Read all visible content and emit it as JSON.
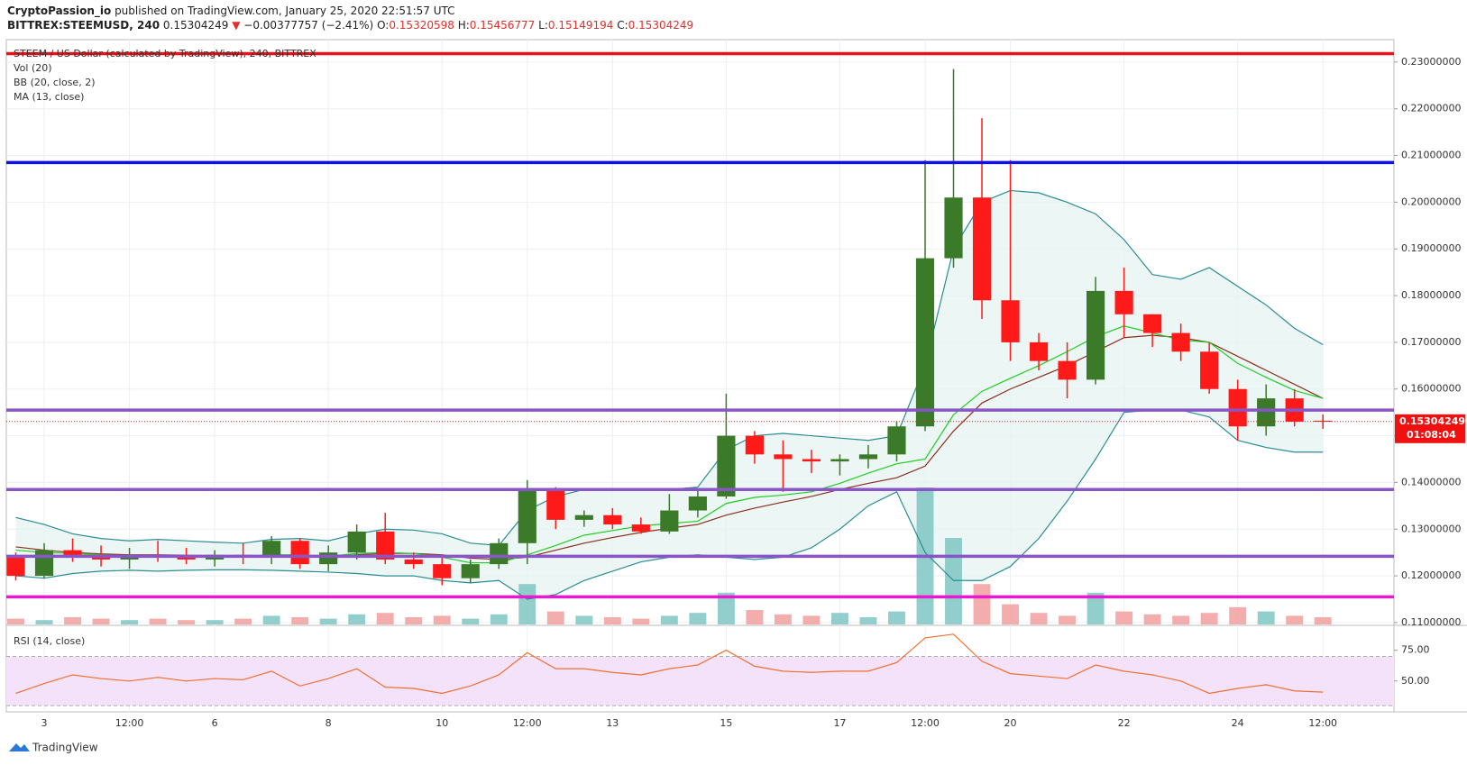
{
  "header": {
    "author": "CryptoPassion_io",
    "published": "published on TradingView.com, January 25, 2020 22:51:57 UTC",
    "symbol": "BITTREX:STEEMUSD, 240",
    "last": "0.15304249",
    "arrow": "▼",
    "change": "−0.00377757 (−2.41%)",
    "ohlc": [
      {
        "label": "O:",
        "value": "0.15320598"
      },
      {
        "label": "H:",
        "value": "0.15456777"
      },
      {
        "label": "L:",
        "value": "0.15149194"
      },
      {
        "label": "C:",
        "value": "0.15304249"
      }
    ]
  },
  "chart_data": {
    "type": "candlestick",
    "legend": [
      "STEEM / US Dollar (calculated by TradingView), 240, BITTREX",
      "Vol (20)",
      "BB (20, close, 2)",
      "MA (13, close)"
    ],
    "x": [
      12,
      24,
      36,
      48,
      60,
      72,
      84,
      96,
      108,
      120,
      132,
      144,
      156,
      168,
      180,
      192,
      204,
      216,
      228,
      240,
      252,
      264,
      276,
      288,
      300,
      312,
      324,
      336,
      348,
      360,
      372,
      384,
      396,
      408,
      420,
      432,
      444,
      456,
      468,
      480,
      492,
      504,
      516,
      528,
      540,
      552,
      564
    ],
    "xlim": [
      8,
      594
    ],
    "xticks": [
      {
        "value": 24,
        "label": "3"
      },
      {
        "value": 60,
        "label": "12:00"
      },
      {
        "value": 96,
        "label": "6"
      },
      {
        "value": 144,
        "label": "8"
      },
      {
        "value": 192,
        "label": "10"
      },
      {
        "value": 228,
        "label": "12:00"
      },
      {
        "value": 264,
        "label": "13"
      },
      {
        "value": 312,
        "label": "15"
      },
      {
        "value": 360,
        "label": "17"
      },
      {
        "value": 396,
        "label": "12:00"
      },
      {
        "value": 432,
        "label": "20"
      },
      {
        "value": 480,
        "label": "22"
      },
      {
        "value": 528,
        "label": "24"
      },
      {
        "value": 564,
        "label": "12:00"
      }
    ],
    "candles": [
      [
        0.124,
        0.125,
        0.119,
        0.12
      ],
      [
        0.12,
        0.127,
        0.1195,
        0.1255
      ],
      [
        0.1255,
        0.128,
        0.123,
        0.124
      ],
      [
        0.124,
        0.1265,
        0.122,
        0.1235
      ],
      [
        0.1235,
        0.126,
        0.1215,
        0.1245
      ],
      [
        0.1245,
        0.1275,
        0.123,
        0.124
      ],
      [
        0.124,
        0.126,
        0.1225,
        0.1235
      ],
      [
        0.1235,
        0.1255,
        0.122,
        0.1245
      ],
      [
        0.1245,
        0.127,
        0.1225,
        0.124
      ],
      [
        0.124,
        0.1285,
        0.1225,
        0.1275
      ],
      [
        0.1275,
        0.128,
        0.1215,
        0.1225
      ],
      [
        0.1225,
        0.1265,
        0.121,
        0.125
      ],
      [
        0.125,
        0.131,
        0.1235,
        0.1295
      ],
      [
        0.1295,
        0.1335,
        0.1225,
        0.1235
      ],
      [
        0.1235,
        0.125,
        0.1215,
        0.1225
      ],
      [
        0.1225,
        0.124,
        0.118,
        0.1195
      ],
      [
        0.1195,
        0.1235,
        0.1185,
        0.1225
      ],
      [
        0.1225,
        0.128,
        0.1215,
        0.127
      ],
      [
        0.127,
        0.1405,
        0.1225,
        0.1385
      ],
      [
        0.1385,
        0.139,
        0.13,
        0.132
      ],
      [
        0.132,
        0.134,
        0.1305,
        0.133
      ],
      [
        0.133,
        0.1345,
        0.13,
        0.131
      ],
      [
        0.131,
        0.1325,
        0.129,
        0.1295
      ],
      [
        0.1295,
        0.1375,
        0.129,
        0.134
      ],
      [
        0.134,
        0.1385,
        0.1325,
        0.137
      ],
      [
        0.137,
        0.159,
        0.1365,
        0.15
      ],
      [
        0.15,
        0.151,
        0.144,
        0.146
      ],
      [
        0.146,
        0.149,
        0.138,
        0.145
      ],
      [
        0.145,
        0.147,
        0.142,
        0.1445
      ],
      [
        0.1445,
        0.146,
        0.1415,
        0.145
      ],
      [
        0.145,
        0.148,
        0.143,
        0.146
      ],
      [
        0.146,
        0.153,
        0.1445,
        0.152
      ],
      [
        0.152,
        0.209,
        0.151,
        0.188
      ],
      [
        0.188,
        0.2285,
        0.186,
        0.201
      ],
      [
        0.201,
        0.218,
        0.175,
        0.179
      ],
      [
        0.179,
        0.209,
        0.166,
        0.17
      ],
      [
        0.17,
        0.172,
        0.164,
        0.166
      ],
      [
        0.166,
        0.17,
        0.158,
        0.162
      ],
      [
        0.162,
        0.184,
        0.161,
        0.181
      ],
      [
        0.181,
        0.186,
        0.171,
        0.176
      ],
      [
        0.176,
        0.176,
        0.169,
        0.172
      ],
      [
        0.172,
        0.174,
        0.166,
        0.168
      ],
      [
        0.168,
        0.17,
        0.159,
        0.16
      ],
      [
        0.16,
        0.162,
        0.149,
        0.152
      ],
      [
        0.152,
        0.161,
        0.15,
        0.158
      ],
      [
        0.158,
        0.16,
        0.152,
        0.153
      ],
      [
        0.15320598,
        0.15456777,
        0.15149194,
        0.15304249
      ]
    ],
    "up_color": "#3b7a28",
    "down_color": "#ff1a1a",
    "volume": [
      4,
      3,
      5,
      4,
      3,
      4,
      3,
      3,
      4,
      6,
      5,
      4,
      7,
      8,
      5,
      6,
      4,
      7,
      28,
      9,
      6,
      5,
      4,
      6,
      8,
      22,
      10,
      7,
      6,
      8,
      5,
      9,
      95,
      60,
      28,
      14,
      8,
      6,
      22,
      9,
      7,
      6,
      8,
      12,
      9,
      6,
      5
    ],
    "volume_lim": [
      0,
      100
    ],
    "volume_up_color": "#7fc5c3",
    "volume_down_color": "#f19f9f",
    "bb_upper": [
      0.1325,
      0.131,
      0.129,
      0.128,
      0.1275,
      0.1278,
      0.1275,
      0.1272,
      0.127,
      0.1278,
      0.128,
      0.1275,
      0.129,
      0.13,
      0.1298,
      0.129,
      0.127,
      0.1265,
      0.134,
      0.137,
      0.1385,
      0.1385,
      0.1385,
      0.1385,
      0.139,
      0.147,
      0.15,
      0.1505,
      0.15,
      0.1495,
      0.149,
      0.15,
      0.165,
      0.19,
      0.2,
      0.2025,
      0.202,
      0.2,
      0.1975,
      0.192,
      0.1845,
      0.1835,
      0.186,
      0.182,
      0.178,
      0.173,
      0.1695
    ],
    "bb_lower": [
      0.12,
      0.1195,
      0.1205,
      0.121,
      0.1212,
      0.121,
      0.1212,
      0.1213,
      0.1213,
      0.1212,
      0.121,
      0.1208,
      0.1205,
      0.12,
      0.12,
      0.119,
      0.1185,
      0.119,
      0.115,
      0.116,
      0.119,
      0.121,
      0.123,
      0.124,
      0.1245,
      0.124,
      0.1235,
      0.124,
      0.126,
      0.13,
      0.135,
      0.138,
      0.125,
      0.119,
      0.119,
      0.122,
      0.128,
      0.136,
      0.145,
      0.155,
      0.1555,
      0.1555,
      0.154,
      0.149,
      0.1475,
      0.1465,
      0.1465
    ],
    "bb_basis": [
      0.1262,
      0.1255,
      0.125,
      0.1247,
      0.1245,
      0.1245,
      0.1244,
      0.1243,
      0.1242,
      0.1243,
      0.1243,
      0.1242,
      0.1245,
      0.1248,
      0.1248,
      0.1245,
      0.1238,
      0.1235,
      0.124,
      0.1255,
      0.127,
      0.1282,
      0.1293,
      0.1302,
      0.131,
      0.133,
      0.1345,
      0.1358,
      0.137,
      0.1385,
      0.1398,
      0.141,
      0.1435,
      0.151,
      0.157,
      0.16,
      0.1625,
      0.165,
      0.168,
      0.171,
      0.1715,
      0.171,
      0.17,
      0.167,
      0.164,
      0.161,
      0.158
    ],
    "ma": [
      0.1255,
      0.125,
      0.1248,
      0.1245,
      0.1243,
      0.1244,
      0.1243,
      0.1242,
      0.1241,
      0.1245,
      0.1245,
      0.1242,
      0.1248,
      0.125,
      0.1248,
      0.124,
      0.1228,
      0.1228,
      0.1245,
      0.1265,
      0.1287,
      0.1297,
      0.1307,
      0.1312,
      0.1317,
      0.1355,
      0.1368,
      0.1373,
      0.138,
      0.1398,
      0.142,
      0.144,
      0.145,
      0.1545,
      0.1595,
      0.1623,
      0.165,
      0.168,
      0.1712,
      0.1735,
      0.172,
      0.1705,
      0.17,
      0.1655,
      0.1625,
      0.1597,
      0.158
    ],
    "bb_color": "#2a8c92",
    "bb_basis_color": "#8b2d1a",
    "ma_color": "#22cc22",
    "bb_fill": "#e6f4f3",
    "ylim": [
      0.1096,
      0.2348
    ],
    "yticks": [
      {
        "value": 0.11,
        "label": "0.11000000"
      },
      {
        "value": 0.12,
        "label": "0.12000000"
      },
      {
        "value": 0.13,
        "label": "0.13000000"
      },
      {
        "value": 0.14,
        "label": "0.14000000"
      },
      {
        "value": 0.15,
        "label": "0.15000000"
      },
      {
        "value": 0.16,
        "label": "0.16000000"
      },
      {
        "value": 0.17,
        "label": "0.17000000"
      },
      {
        "value": 0.18,
        "label": "0.18000000"
      },
      {
        "value": 0.19,
        "label": "0.19000000"
      },
      {
        "value": 0.2,
        "label": "0.20000000"
      },
      {
        "value": 0.21,
        "label": "0.21000000"
      },
      {
        "value": 0.22,
        "label": "0.22000000"
      },
      {
        "value": 0.23,
        "label": "0.23000000"
      }
    ],
    "grid": true,
    "levels": [
      {
        "value": 0.2318,
        "color": "#e8121a"
      },
      {
        "value": 0.2085,
        "color": "#1111dd"
      },
      {
        "value": 0.1555,
        "color": "#8a55c8"
      },
      {
        "value": 0.1385,
        "color": "#8a55c8"
      },
      {
        "value": 0.1242,
        "color": "#8a55c8"
      },
      {
        "value": 0.1155,
        "color": "#e81ad0"
      }
    ],
    "price_tag": {
      "value": 0.15304249,
      "label": "0.15304249",
      "countdown": "01:08:04"
    },
    "rsi": {
      "title": "RSI (14, close)",
      "color": "#f07030",
      "band": [
        30,
        70
      ],
      "band_color": "#f3e2fa",
      "values": [
        40,
        48,
        55,
        52,
        50,
        53,
        50,
        52,
        51,
        58,
        46,
        52,
        60,
        45,
        44,
        40,
        46,
        55,
        73,
        60,
        60,
        57,
        55,
        60,
        63,
        75,
        62,
        58,
        57,
        58,
        58,
        65,
        85,
        88,
        66,
        56,
        54,
        52,
        63,
        58,
        55,
        50,
        40,
        44,
        47,
        42,
        41
      ],
      "ylim": [
        25,
        93
      ],
      "yticks": [
        {
          "value": 75,
          "label": "75.00"
        },
        {
          "value": 50,
          "label": "50.00"
        }
      ]
    },
    "footer": "TradingView"
  }
}
